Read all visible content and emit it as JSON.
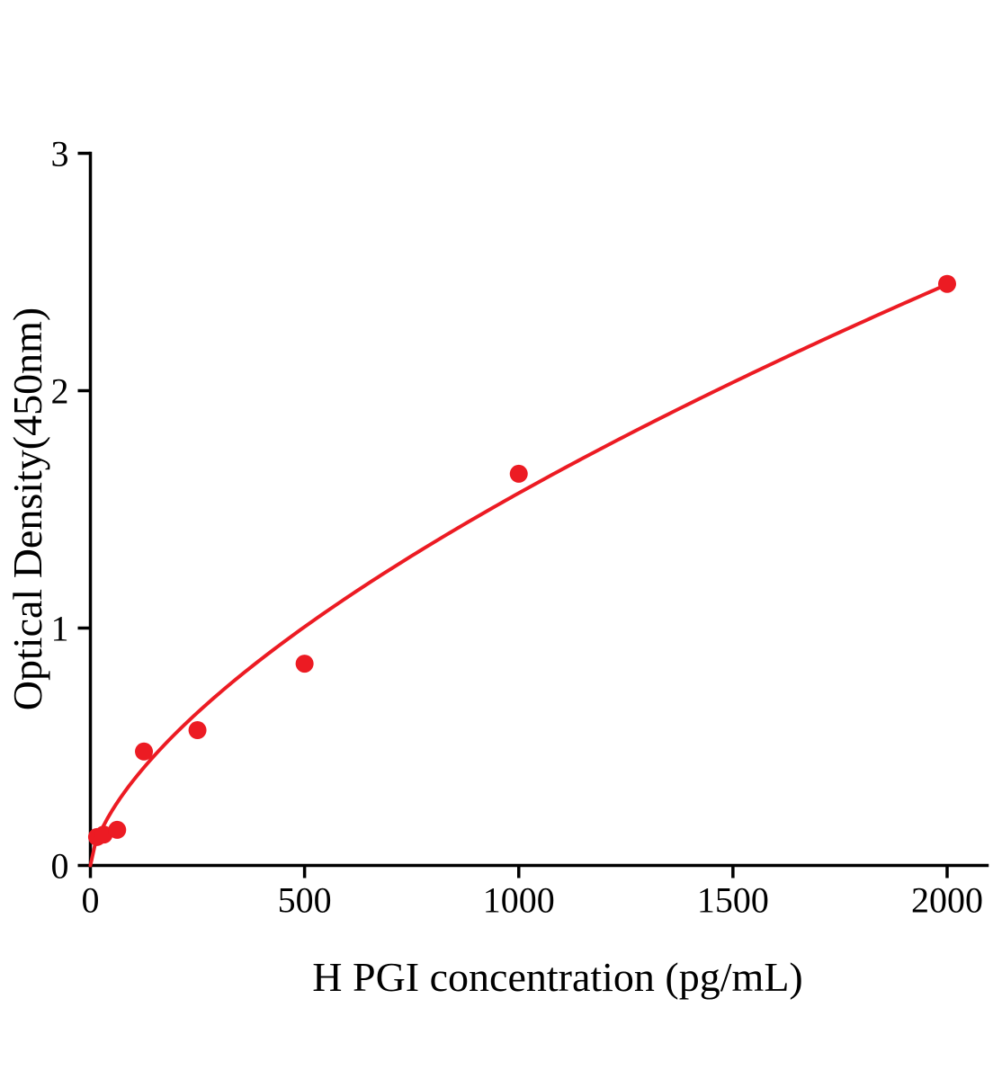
{
  "chart_data": {
    "type": "scatter",
    "title": "",
    "xlabel": "H PGI concentration (pg/mL)",
    "ylabel": "Optical Density(450nm)",
    "xlim": [
      0,
      2000
    ],
    "ylim": [
      0,
      3
    ],
    "x_ticks": [
      "0",
      "500",
      "1000",
      "1500",
      "2000"
    ],
    "x_tick_values": [
      0,
      500,
      1000,
      1500,
      2000
    ],
    "y_ticks": [
      "0",
      "1",
      "2",
      "3"
    ],
    "y_tick_values": [
      0,
      1,
      2,
      3
    ],
    "grid": false,
    "legend": "none",
    "accent_color": "#ec1b23",
    "axis_color": "#000000",
    "points": [
      {
        "x": 15.6,
        "y": 0.12
      },
      {
        "x": 31.2,
        "y": 0.13
      },
      {
        "x": 62.5,
        "y": 0.15
      },
      {
        "x": 125,
        "y": 0.48
      },
      {
        "x": 250,
        "y": 0.57
      },
      {
        "x": 500,
        "y": 0.85
      },
      {
        "x": 1000,
        "y": 1.65
      },
      {
        "x": 2000,
        "y": 2.45
      }
    ],
    "fit_curve": {
      "type": "power",
      "a": 0.0186,
      "b": 0.642,
      "x_start": 0,
      "x_end": 2000
    },
    "marker_radius": 10,
    "curve_width": 4,
    "axis_width": 3.5
  }
}
